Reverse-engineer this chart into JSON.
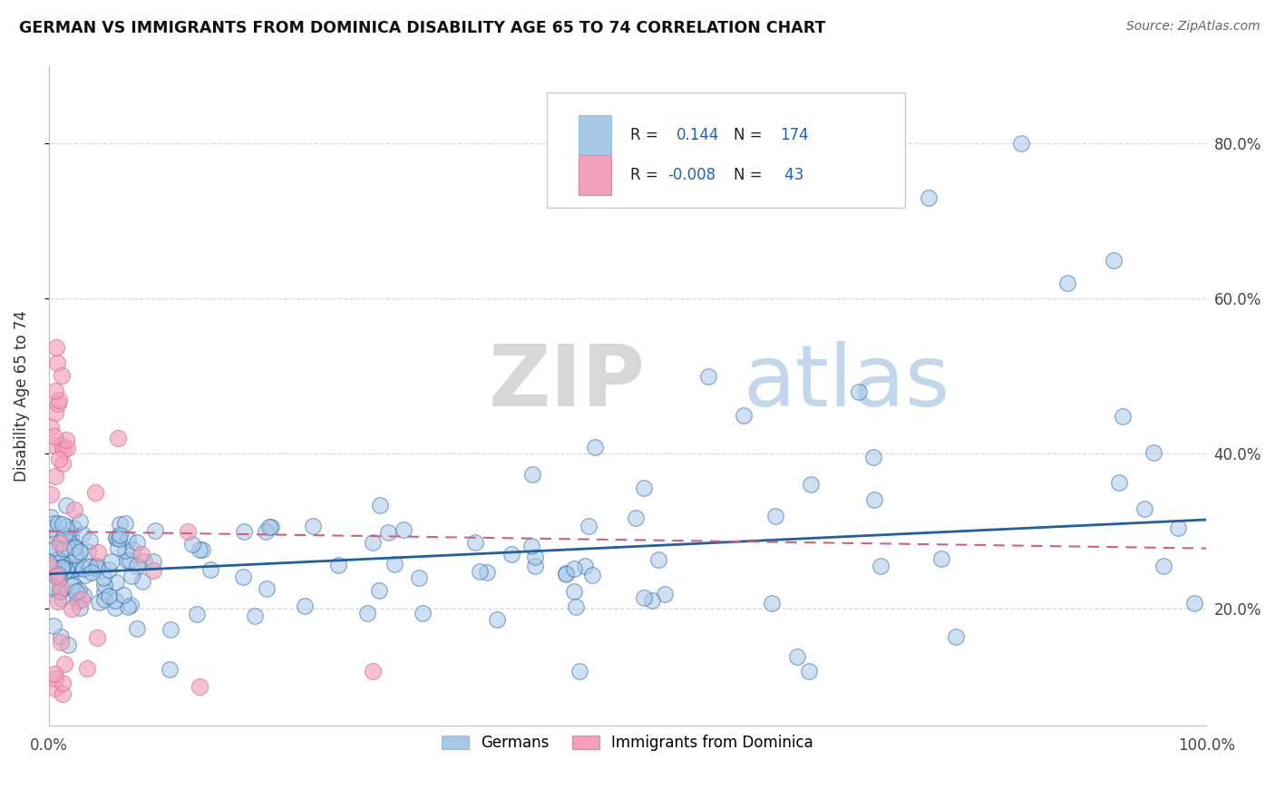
{
  "title": "GERMAN VS IMMIGRANTS FROM DOMINICA DISABILITY AGE 65 TO 74 CORRELATION CHART",
  "source": "Source: ZipAtlas.com",
  "ylabel": "Disability Age 65 to 74",
  "r_german": 0.144,
  "n_german": 174,
  "r_dominica": -0.008,
  "n_dominica": 43,
  "color_german": "#a8c8e8",
  "color_dominica": "#f4a0b8",
  "line_color_german": "#2060a0",
  "line_color_dominica": "#d06080",
  "background_color": "#ffffff",
  "watermark_zip": "ZIP",
  "watermark_atlas": "atlas",
  "legend_labels": [
    "Germans",
    "Immigrants from Dominica"
  ],
  "yticks": [
    0.2,
    0.4,
    0.6,
    0.8
  ],
  "ytick_labels": [
    "20.0%",
    "40.0%",
    "60.0%",
    "80.0%"
  ],
  "xticks": [
    0.0,
    1.0
  ],
  "xtick_labels": [
    "0.0%",
    "100.0%"
  ],
  "ylim": [
    0.05,
    0.9
  ],
  "xlim": [
    0.0,
    1.0
  ]
}
